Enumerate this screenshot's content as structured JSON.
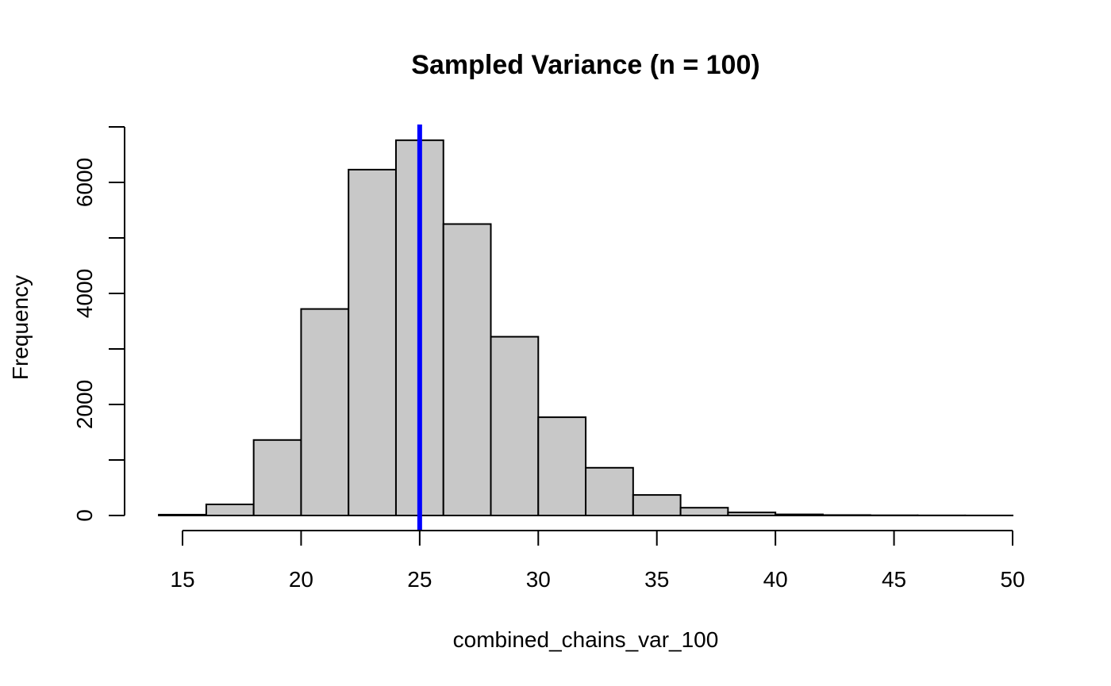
{
  "chart_data": {
    "type": "bar",
    "title": "Sampled Variance (n = 100)",
    "xlabel": "combined_chains_var_100",
    "ylabel": "Frequency",
    "bin_edges": [
      14,
      16,
      18,
      20,
      22,
      24,
      26,
      28,
      30,
      32,
      34,
      36,
      38,
      40,
      42,
      44,
      46,
      48,
      50
    ],
    "values": [
      15,
      200,
      1360,
      3720,
      6230,
      6760,
      5250,
      3220,
      1770,
      860,
      370,
      140,
      55,
      20,
      8,
      4,
      2,
      1
    ],
    "xlim": [
      15,
      50
    ],
    "ylim": [
      0,
      7000
    ],
    "x_ticks": [
      15,
      20,
      25,
      30,
      35,
      40,
      45,
      50
    ],
    "y_ticks": [
      0,
      2000,
      4000,
      6000
    ],
    "y_tick_labels": [
      "0",
      "2000",
      "4000",
      "6000"
    ],
    "bar_color": "#c8c8c8",
    "bar_edge_color": "#000000",
    "reference_line": {
      "x": 25,
      "color": "#0000ff"
    },
    "grid": false,
    "legend": "none"
  }
}
